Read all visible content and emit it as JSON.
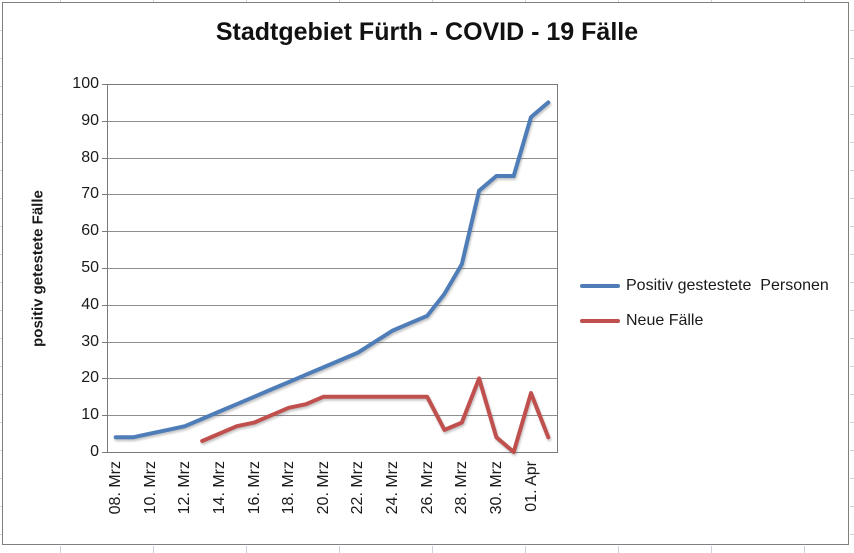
{
  "chart_data": {
    "type": "line",
    "title": "Stadtgebiet Fürth - COVID - 19 Fälle",
    "ylabel": "positiv getestete Fälle",
    "xlabel": "",
    "ylim": [
      0,
      100
    ],
    "yticks": [
      0,
      10,
      20,
      30,
      40,
      50,
      60,
      70,
      80,
      90,
      100
    ],
    "grid": "horizontal",
    "legend_position": "right",
    "categories": [
      "08. Mrz",
      "09. Mrz",
      "10. Mrz",
      "11. Mrz",
      "12. Mrz",
      "13. Mrz",
      "14. Mrz",
      "15. Mrz",
      "16. Mrz",
      "17. Mrz",
      "18. Mrz",
      "19. Mrz",
      "20. Mrz",
      "21. Mrz",
      "22. Mrz",
      "23. Mrz",
      "24. Mrz",
      "25. Mrz",
      "26. Mrz",
      "27. Mrz",
      "28. Mrz",
      "29. Mrz",
      "30. Mrz",
      "31. Mrz",
      "01. Apr",
      "02. Apr"
    ],
    "xtick_labels": [
      "08. Mrz",
      "10. Mrz",
      "12. Mrz",
      "14. Mrz",
      "16. Mrz",
      "18. Mrz",
      "20. Mrz",
      "22. Mrz",
      "24. Mrz",
      "26. Mrz",
      "28. Mrz",
      "30. Mrz",
      "01. Apr"
    ],
    "xtick_every": 2,
    "series": [
      {
        "name": "Positiv gestestete  Personen",
        "color": "#4e7db7",
        "values": [
          4,
          4,
          5,
          6,
          7,
          9,
          11,
          13,
          15,
          17,
          19,
          21,
          23,
          25,
          27,
          30,
          33,
          35,
          37,
          43,
          51,
          71,
          75,
          75,
          91,
          95
        ]
      },
      {
        "name": "Neue Fälle",
        "color": "#c0504d",
        "values": [
          null,
          null,
          null,
          null,
          null,
          3,
          5,
          7,
          8,
          10,
          12,
          13,
          15,
          15,
          15,
          15,
          15,
          15,
          15,
          6,
          8,
          20,
          4,
          0,
          16,
          4
        ]
      }
    ],
    "colors": {
      "gridline": "#8e8e8e",
      "axis_border": "#7a7a7a",
      "text": "#1a1a1a"
    }
  }
}
